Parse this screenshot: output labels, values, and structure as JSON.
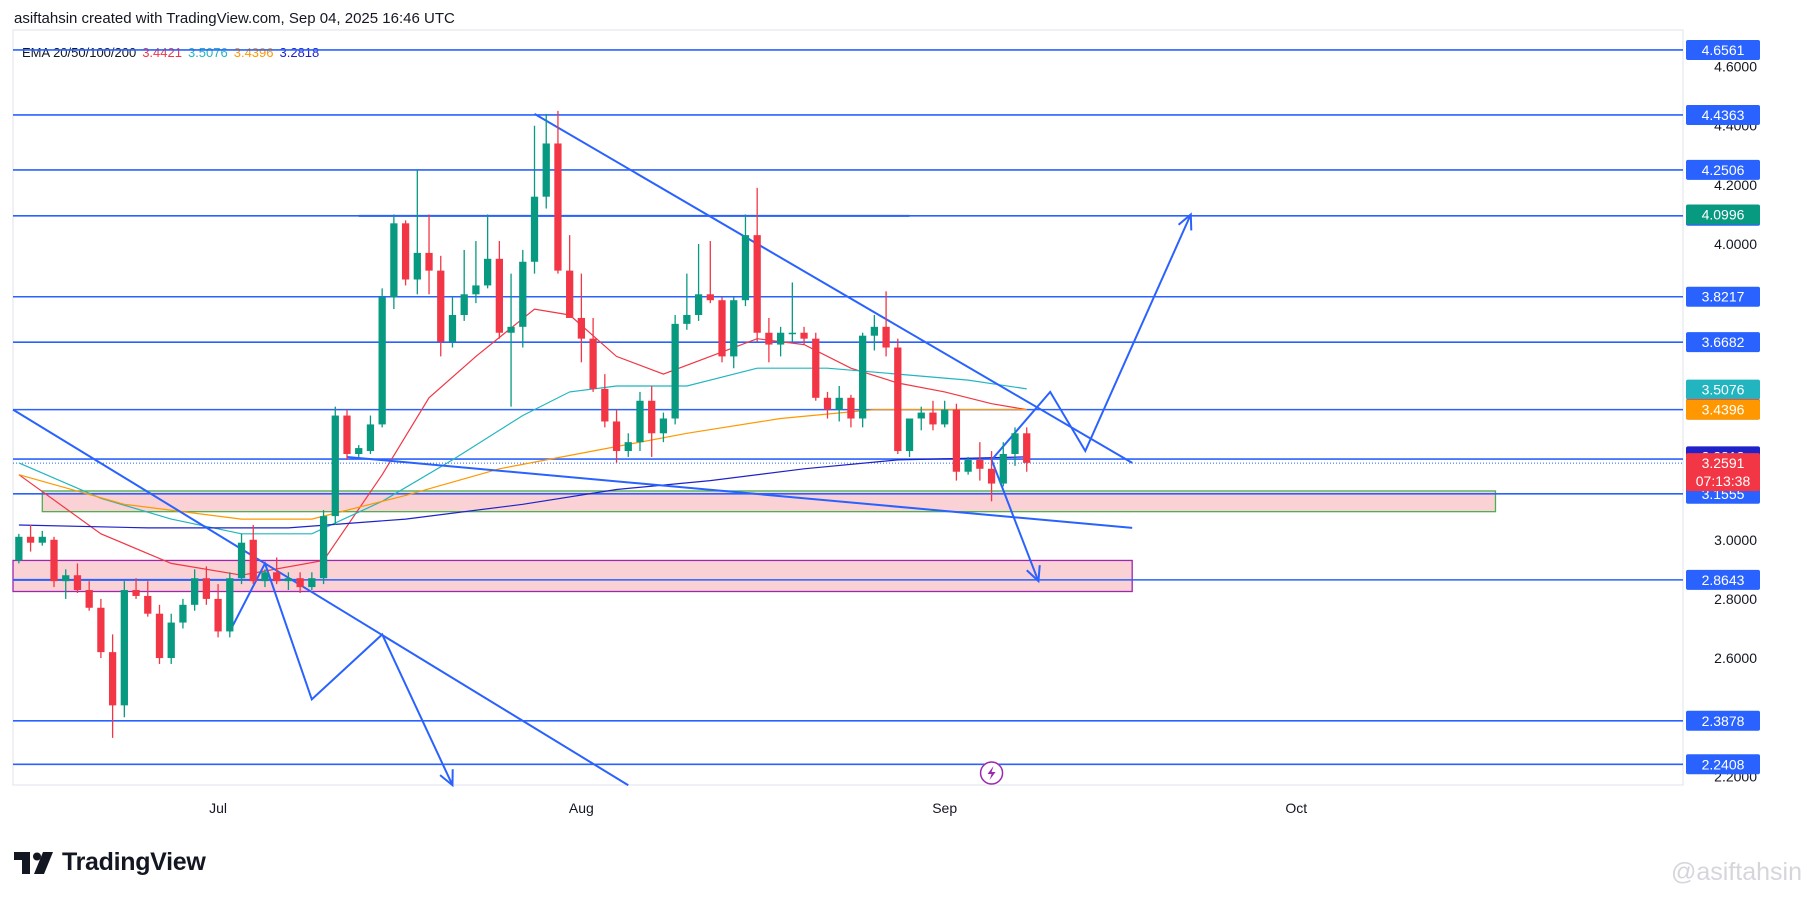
{
  "header": {
    "attribution": "asiftahsin created with TradingView.com, Sep 04, 2025 16:46 UTC"
  },
  "legend": {
    "label": "EMA 20/50/100/200",
    "values": [
      {
        "text": "3.4421",
        "color": "#f23645"
      },
      {
        "text": "3.5076",
        "color": "#22b5bf"
      },
      {
        "text": "3.4396",
        "color": "#ff9800"
      },
      {
        "text": "3.2818",
        "color": "#1e22c8"
      }
    ]
  },
  "brand": {
    "name": "TradingView",
    "icon": "tradingview-logo-icon"
  },
  "watermark": "@asiftahsin",
  "colors": {
    "up": "#089981",
    "down": "#f23645",
    "line": "#2962ff",
    "zone_fill": "#f9c9ce"
  },
  "chart_data": {
    "type": "candlestick",
    "y_axis_ticks": [
      "2.2000",
      "2.4000",
      "2.6000",
      "2.8000",
      "3.0000",
      "4.0000",
      "4.2000",
      "4.4000",
      "4.6000"
    ],
    "ylim": [
      2.12,
      4.7
    ],
    "x_axis_labels": [
      {
        "label": "Jul",
        "day": 18
      },
      {
        "label": "Aug",
        "day": 49
      },
      {
        "label": "Sep",
        "day": 80
      },
      {
        "label": "Oct",
        "day": 110
      }
    ],
    "xlim": [
      0.5,
      143
    ],
    "horizontal_levels": [
      {
        "value": 4.6561,
        "label": "4.6561",
        "bg": "#2962ff"
      },
      {
        "value": 4.4363,
        "label": "4.4363",
        "bg": "#2962ff"
      },
      {
        "value": 4.2506,
        "label": "4.2506",
        "bg": "#2962ff"
      },
      {
        "value": 4.0954,
        "label": "4.0954",
        "bg": "#2962ff"
      },
      {
        "value": 3.8217,
        "label": "3.8217",
        "bg": "#2962ff"
      },
      {
        "value": 3.6682,
        "label": "3.6682",
        "bg": "#2962ff"
      },
      {
        "value": 3.44,
        "label": "3.4400",
        "bg": "#2962ff"
      },
      {
        "value": 3.273,
        "label": "3.2730",
        "bg": "#2962ff"
      },
      {
        "value": 3.1555,
        "label": "3.1555",
        "bg": "#2962ff"
      },
      {
        "value": 2.8643,
        "label": "2.8643",
        "bg": "#2962ff"
      },
      {
        "value": 2.3878,
        "label": "2.3878",
        "bg": "#2962ff"
      },
      {
        "value": 2.2408,
        "label": "2.2408",
        "bg": "#2962ff"
      }
    ],
    "extra_price_labels": [
      {
        "value": 4.0996,
        "label": "4.0996",
        "bg": "#089981"
      },
      {
        "value": 3.5076,
        "label": "3.5076",
        "bg": "#22b5bf"
      },
      {
        "value": 3.4421,
        "label": "3.4421",
        "bg": "#f23645"
      },
      {
        "value": 3.4396,
        "label": "3.4396",
        "bg": "#ff9800"
      },
      {
        "value": 3.2818,
        "label": "3.2818",
        "bg": "#1e22c8"
      }
    ],
    "current_price": {
      "value": 3.2591,
      "label": "3.2591",
      "countdown": "07:13:38",
      "bg": "#f23645"
    },
    "candles": [
      [
        1,
        2.93,
        3.02,
        2.92,
        3.01
      ],
      [
        2,
        3.01,
        3.05,
        2.96,
        2.99
      ],
      [
        3,
        2.99,
        3.03,
        2.98,
        3.01
      ],
      [
        4,
        3.0,
        3.01,
        2.84,
        2.86
      ],
      [
        5,
        2.86,
        2.9,
        2.8,
        2.88
      ],
      [
        6,
        2.88,
        2.92,
        2.82,
        2.83
      ],
      [
        7,
        2.83,
        2.86,
        2.76,
        2.77
      ],
      [
        8,
        2.77,
        2.8,
        2.6,
        2.62
      ],
      [
        9,
        2.62,
        2.68,
        2.33,
        2.44
      ],
      [
        10,
        2.44,
        2.86,
        2.4,
        2.83
      ],
      [
        11,
        2.83,
        2.87,
        2.8,
        2.81
      ],
      [
        12,
        2.81,
        2.86,
        2.74,
        2.75
      ],
      [
        13,
        2.75,
        2.78,
        2.58,
        2.6
      ],
      [
        14,
        2.6,
        2.75,
        2.58,
        2.72
      ],
      [
        15,
        2.72,
        2.8,
        2.7,
        2.78
      ],
      [
        16,
        2.78,
        2.9,
        2.76,
        2.87
      ],
      [
        17,
        2.87,
        2.91,
        2.78,
        2.8
      ],
      [
        18,
        2.8,
        2.85,
        2.67,
        2.69
      ],
      [
        19,
        2.69,
        2.89,
        2.67,
        2.87
      ],
      [
        20,
        2.87,
        3.02,
        2.85,
        2.99
      ],
      [
        21,
        3.0,
        3.05,
        2.85,
        2.86
      ],
      [
        22,
        2.86,
        2.9,
        2.84,
        2.89
      ],
      [
        23,
        2.89,
        2.94,
        2.85,
        2.86
      ],
      [
        24,
        2.86,
        2.89,
        2.83,
        2.87
      ],
      [
        25,
        2.87,
        2.89,
        2.82,
        2.84
      ],
      [
        26,
        2.84,
        2.89,
        2.83,
        2.87
      ],
      [
        27,
        2.87,
        3.1,
        2.85,
        3.08
      ],
      [
        28,
        3.08,
        3.45,
        3.05,
        3.42
      ],
      [
        29,
        3.42,
        3.44,
        3.27,
        3.29
      ],
      [
        30,
        3.29,
        3.32,
        3.28,
        3.31
      ],
      [
        31,
        3.3,
        3.42,
        3.29,
        3.39
      ],
      [
        32,
        3.39,
        3.85,
        3.38,
        3.82
      ],
      [
        33,
        3.82,
        4.1,
        3.78,
        4.07
      ],
      [
        34,
        4.07,
        4.08,
        3.86,
        3.88
      ],
      [
        35,
        3.88,
        4.25,
        3.83,
        3.97
      ],
      [
        36,
        3.97,
        4.1,
        3.83,
        3.91
      ],
      [
        37,
        3.91,
        3.96,
        3.62,
        3.67
      ],
      [
        38,
        3.67,
        3.82,
        3.65,
        3.76
      ],
      [
        39,
        3.76,
        3.98,
        3.74,
        3.83
      ],
      [
        40,
        3.83,
        4.01,
        3.8,
        3.86
      ],
      [
        41,
        3.86,
        4.1,
        3.85,
        3.95
      ],
      [
        42,
        3.95,
        4.01,
        3.68,
        3.7
      ],
      [
        43,
        3.7,
        3.9,
        3.45,
        3.72
      ],
      [
        44,
        3.72,
        3.98,
        3.65,
        3.94
      ],
      [
        45,
        3.94,
        4.4,
        3.9,
        4.16
      ],
      [
        46,
        4.16,
        4.44,
        4.12,
        4.34
      ],
      [
        47,
        4.34,
        4.45,
        3.9,
        3.91
      ],
      [
        48,
        3.91,
        4.03,
        3.75,
        3.75
      ],
      [
        49,
        3.75,
        3.9,
        3.6,
        3.68
      ],
      [
        50,
        3.68,
        3.75,
        3.5,
        3.51
      ],
      [
        51,
        3.51,
        3.56,
        3.38,
        3.4
      ],
      [
        52,
        3.4,
        3.44,
        3.26,
        3.3
      ],
      [
        53,
        3.3,
        3.36,
        3.28,
        3.33
      ],
      [
        54,
        3.33,
        3.5,
        3.3,
        3.47
      ],
      [
        55,
        3.47,
        3.52,
        3.28,
        3.36
      ],
      [
        56,
        3.36,
        3.43,
        3.33,
        3.41
      ],
      [
        57,
        3.41,
        3.76,
        3.39,
        3.73
      ],
      [
        58,
        3.73,
        3.9,
        3.71,
        3.76
      ],
      [
        59,
        3.76,
        4.0,
        3.74,
        3.83
      ],
      [
        60,
        3.83,
        4.01,
        3.8,
        3.81
      ],
      [
        61,
        3.81,
        3.82,
        3.6,
        3.62
      ],
      [
        62,
        3.62,
        3.82,
        3.58,
        3.81
      ],
      [
        63,
        3.81,
        4.1,
        3.79,
        4.03
      ],
      [
        64,
        4.03,
        4.19,
        3.67,
        3.7
      ],
      [
        65,
        3.7,
        3.75,
        3.6,
        3.66
      ],
      [
        66,
        3.66,
        3.72,
        3.62,
        3.7
      ],
      [
        67,
        3.7,
        3.87,
        3.67,
        3.7
      ],
      [
        68,
        3.7,
        3.72,
        3.66,
        3.68
      ],
      [
        69,
        3.68,
        3.7,
        3.47,
        3.48
      ],
      [
        70,
        3.48,
        3.5,
        3.41,
        3.44
      ],
      [
        71,
        3.44,
        3.52,
        3.4,
        3.48
      ],
      [
        72,
        3.48,
        3.49,
        3.38,
        3.41
      ],
      [
        73,
        3.41,
        3.7,
        3.38,
        3.69
      ],
      [
        74,
        3.69,
        3.76,
        3.64,
        3.72
      ],
      [
        75,
        3.72,
        3.84,
        3.62,
        3.65
      ],
      [
        76,
        3.65,
        3.68,
        3.29,
        3.3
      ],
      [
        77,
        3.3,
        3.41,
        3.28,
        3.41
      ],
      [
        78,
        3.41,
        3.45,
        3.37,
        3.43
      ],
      [
        79,
        3.43,
        3.47,
        3.37,
        3.39
      ],
      [
        80,
        3.39,
        3.47,
        3.38,
        3.44
      ],
      [
        81,
        3.44,
        3.46,
        3.2,
        3.23
      ],
      [
        82,
        3.23,
        3.28,
        3.22,
        3.27
      ],
      [
        83,
        3.27,
        3.33,
        3.2,
        3.24
      ],
      [
        84,
        3.24,
        3.3,
        3.13,
        3.19
      ],
      [
        85,
        3.19,
        3.33,
        3.18,
        3.29
      ],
      [
        86,
        3.29,
        3.38,
        3.25,
        3.36
      ],
      [
        87,
        3.36,
        3.38,
        3.23,
        3.26
      ]
    ],
    "ema_series": [
      {
        "period": "EMA 20",
        "color": "#f23645",
        "points": [
          [
            1,
            3.22
          ],
          [
            8,
            3.02
          ],
          [
            14,
            2.92
          ],
          [
            20,
            2.88
          ],
          [
            27,
            2.93
          ],
          [
            32,
            3.22
          ],
          [
            36,
            3.48
          ],
          [
            40,
            3.62
          ],
          [
            45,
            3.78
          ],
          [
            48,
            3.76
          ],
          [
            52,
            3.62
          ],
          [
            56,
            3.56
          ],
          [
            60,
            3.62
          ],
          [
            64,
            3.68
          ],
          [
            68,
            3.66
          ],
          [
            72,
            3.58
          ],
          [
            76,
            3.53
          ],
          [
            80,
            3.5
          ],
          [
            84,
            3.46
          ],
          [
            87,
            3.44
          ]
        ]
      },
      {
        "period": "EMA 50",
        "color": "#22b5bf",
        "points": [
          [
            1,
            3.26
          ],
          [
            8,
            3.14
          ],
          [
            14,
            3.07
          ],
          [
            20,
            3.02
          ],
          [
            26,
            3.02
          ],
          [
            32,
            3.13
          ],
          [
            38,
            3.27
          ],
          [
            44,
            3.42
          ],
          [
            48,
            3.5
          ],
          [
            52,
            3.52
          ],
          [
            58,
            3.52
          ],
          [
            64,
            3.58
          ],
          [
            70,
            3.58
          ],
          [
            76,
            3.56
          ],
          [
            82,
            3.54
          ],
          [
            87,
            3.51
          ]
        ]
      },
      {
        "period": "EMA 100",
        "color": "#ff9800",
        "points": [
          [
            1,
            3.22
          ],
          [
            10,
            3.12
          ],
          [
            20,
            3.07
          ],
          [
            26,
            3.07
          ],
          [
            34,
            3.15
          ],
          [
            42,
            3.24
          ],
          [
            50,
            3.3
          ],
          [
            58,
            3.36
          ],
          [
            66,
            3.41
          ],
          [
            74,
            3.44
          ],
          [
            80,
            3.44
          ],
          [
            87,
            3.44
          ]
        ]
      },
      {
        "period": "EMA 200",
        "color": "#1e22c8",
        "points": [
          [
            1,
            3.05
          ],
          [
            12,
            3.04
          ],
          [
            24,
            3.04
          ],
          [
            34,
            3.07
          ],
          [
            44,
            3.12
          ],
          [
            52,
            3.17
          ],
          [
            60,
            3.2
          ],
          [
            68,
            3.24
          ],
          [
            76,
            3.27
          ],
          [
            87,
            3.28
          ]
        ]
      }
    ],
    "zones": [
      {
        "x0": 3,
        "x1": 127,
        "y0": 3.095,
        "y1": 3.165,
        "fill": "#f9c9ce",
        "stroke": "#4caf50"
      },
      {
        "x0": 0.5,
        "x1": 96,
        "y0": 2.825,
        "y1": 2.93,
        "fill": "#f9c9ce",
        "stroke": "#9c27b0"
      }
    ],
    "trend_lines": [
      [
        [
          0.5,
          3.44
        ],
        [
          53,
          2.17
        ]
      ],
      [
        [
          29,
          3.28
        ],
        [
          96,
          3.04
        ]
      ],
      [
        [
          45,
          4.44
        ],
        [
          96,
          3.26
        ]
      ],
      [
        [
          30,
          4.095
        ],
        [
          77,
          4.095
        ]
      ],
      [
        [
          0.5,
          2.8643
        ],
        [
          25,
          2.8643
        ]
      ]
    ],
    "projection_paths": [
      [
        [
          19,
          2.69
        ],
        [
          22,
          2.92
        ],
        [
          26,
          2.46
        ],
        [
          32,
          2.68
        ],
        [
          38,
          2.17
        ]
      ],
      [
        [
          84,
          3.27
        ],
        [
          89,
          3.5
        ],
        [
          92,
          3.3
        ],
        [
          101,
          4.1
        ]
      ],
      [
        [
          84,
          3.27
        ],
        [
          88,
          2.86
        ]
      ]
    ],
    "event_marker": {
      "day": 84,
      "icon": "lightning-icon"
    }
  }
}
